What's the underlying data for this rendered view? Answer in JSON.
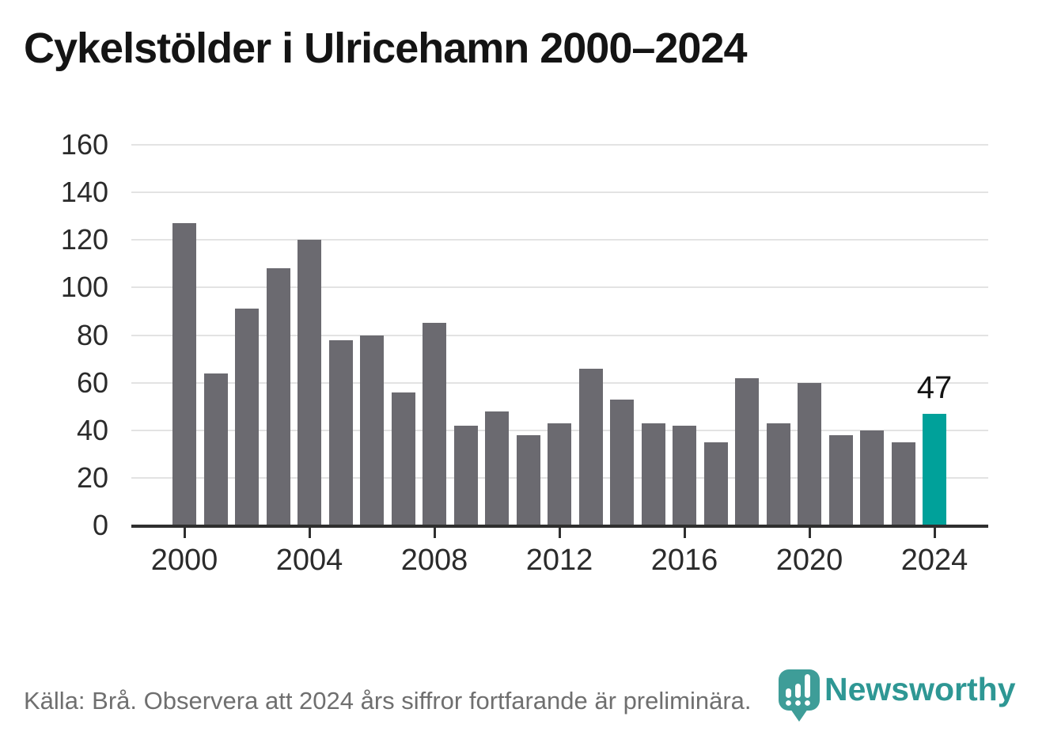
{
  "title": "Cykelstölder i Ulricehamn 2000–2024",
  "chart_data": {
    "type": "bar",
    "title": "Cykelstölder i Ulricehamn 2000–2024",
    "x": [
      2000,
      2001,
      2002,
      2003,
      2004,
      2005,
      2006,
      2007,
      2008,
      2009,
      2010,
      2011,
      2012,
      2013,
      2014,
      2015,
      2016,
      2017,
      2018,
      2019,
      2020,
      2021,
      2022,
      2023,
      2024
    ],
    "values": [
      127,
      64,
      91,
      108,
      120,
      78,
      80,
      56,
      85,
      42,
      48,
      38,
      43,
      66,
      53,
      43,
      42,
      35,
      62,
      43,
      60,
      38,
      40,
      35,
      47
    ],
    "xlabel": "",
    "ylabel": "",
    "ylim": [
      0,
      160
    ],
    "ytick_step": 20,
    "ytick_labels": [
      "0",
      "20",
      "40",
      "60",
      "80",
      "100",
      "120",
      "140",
      "160"
    ],
    "xtick_years": [
      2000,
      2004,
      2008,
      2012,
      2016,
      2020,
      2024
    ],
    "grid": true,
    "legend": false,
    "bar_color": "#6b6a70",
    "highlight_index": 24,
    "highlight_color": "#00a19a",
    "gridline_color": "#e3e3e3",
    "axis_color": "#2f2f2f",
    "annotation": {
      "text": "47",
      "year": 2024,
      "value": 47
    }
  },
  "footer": {
    "source": "Källa: Brå. Observera att 2024 års siffror fortfarande är preliminära.",
    "logo_text": "Newsworthy",
    "logo_color": "#2e9794",
    "logo_icon": "bar-chart-pin-icon",
    "icon_fill": "#3e9d98"
  }
}
